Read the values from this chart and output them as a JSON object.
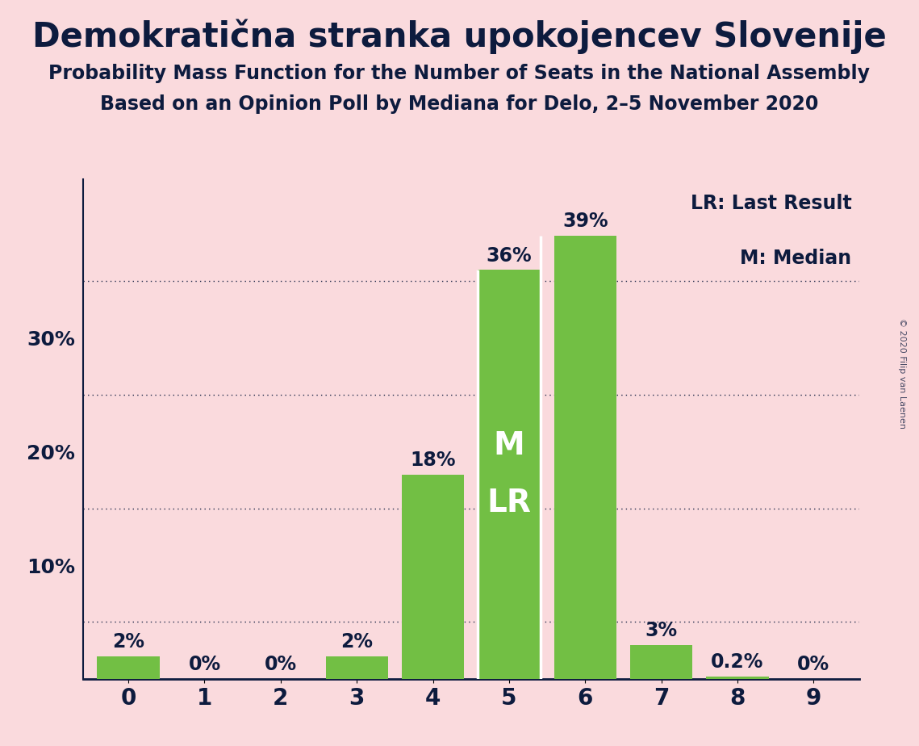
{
  "title": "Demokratična stranka upokojencev Slovenije",
  "subtitle1": "Probability Mass Function for the Number of Seats in the National Assembly",
  "subtitle2": "Based on an Opinion Poll by Mediana for Delo, 2–5 November 2020",
  "copyright": "© 2020 Filip van Laenen",
  "categories": [
    0,
    1,
    2,
    3,
    4,
    5,
    6,
    7,
    8,
    9
  ],
  "values": [
    0.02,
    0.0,
    0.0,
    0.02,
    0.18,
    0.36,
    0.39,
    0.03,
    0.002,
    0.0
  ],
  "labels": [
    "2%",
    "0%",
    "0%",
    "2%",
    "18%",
    "36%",
    "39%",
    "3%",
    "0.2%",
    "0%"
  ],
  "bar_color": "#72bf44",
  "background_color": "#fadadd",
  "text_color": "#0d1b3e",
  "white_color": "#ffffff",
  "legend_lr": "LR: Last Result",
  "legend_m": "M: Median",
  "ylabel_ticks": [
    0.0,
    0.1,
    0.2,
    0.3
  ],
  "ylabel_labels": [
    "",
    "10%",
    "20%",
    "30%"
  ],
  "grid_ticks": [
    0.05,
    0.15,
    0.25,
    0.35
  ],
  "ylim": [
    0,
    0.44
  ],
  "title_fontsize": 30,
  "subtitle_fontsize": 17,
  "label_fontsize": 17,
  "tick_fontsize": 18,
  "legend_fontsize": 17,
  "bar_width": 0.82
}
